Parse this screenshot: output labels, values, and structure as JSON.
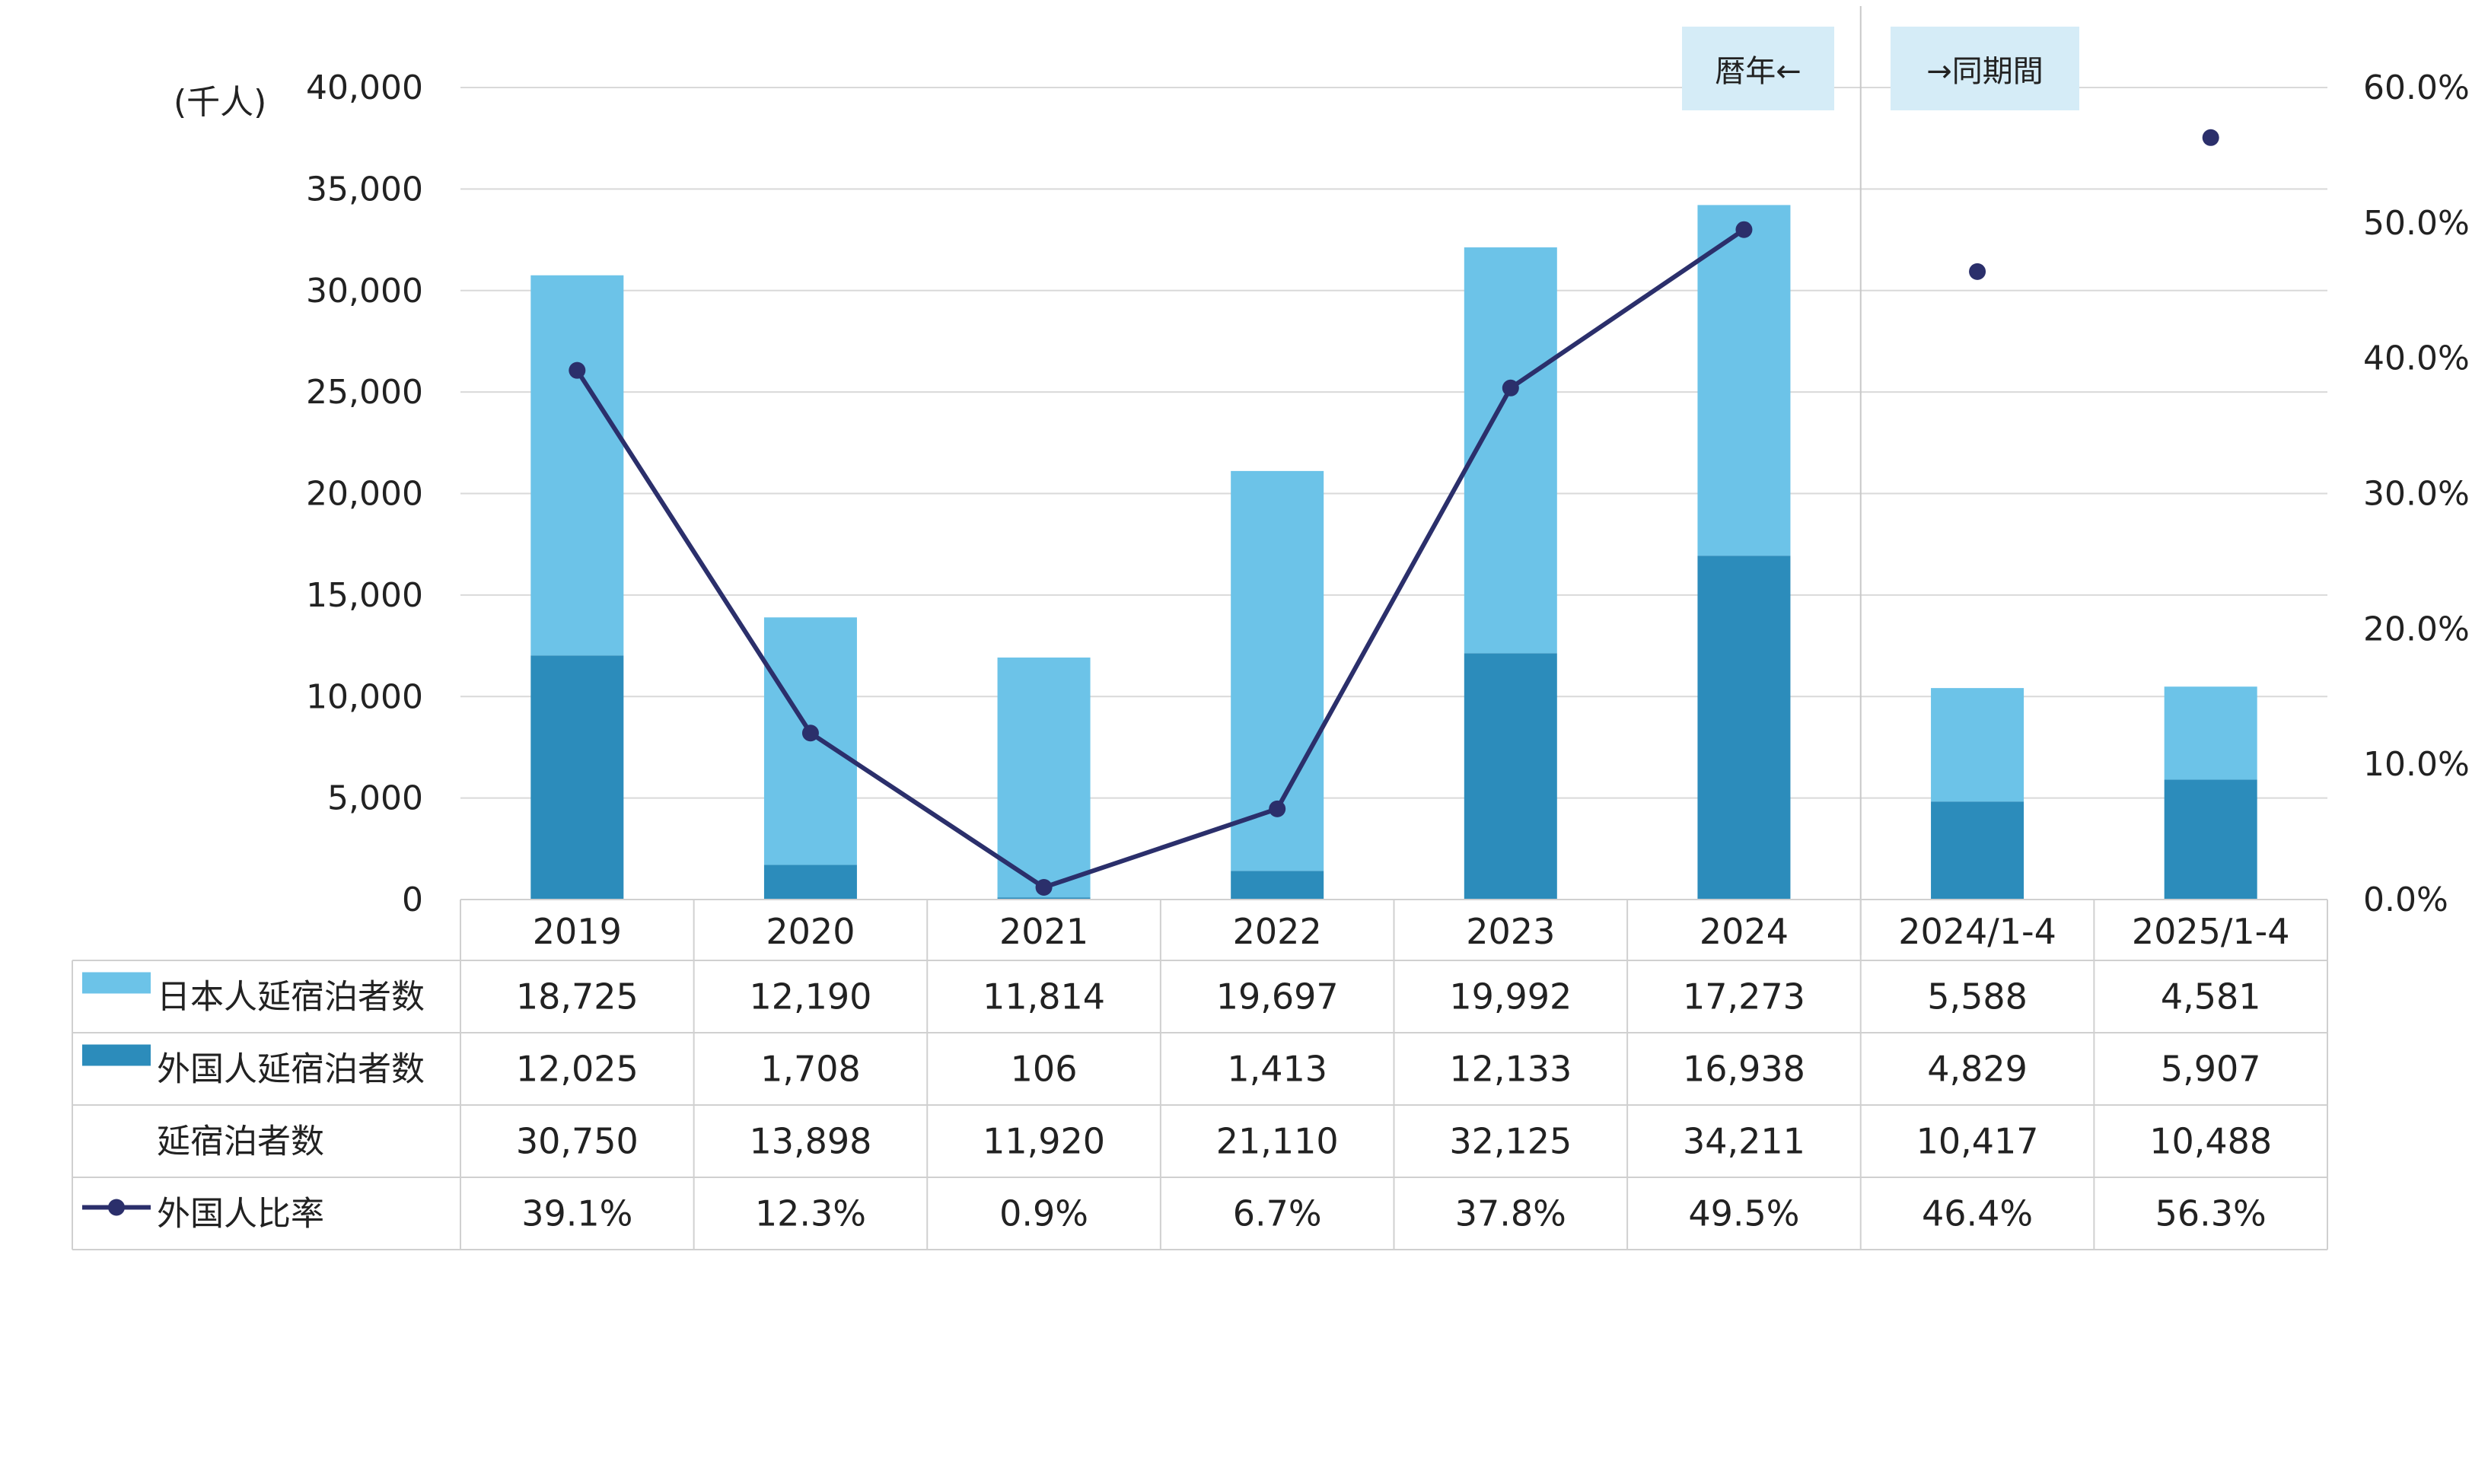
{
  "chart_data": {
    "type": "bar",
    "stacked": true,
    "unit_label": "(千人)",
    "categories": [
      "2019",
      "2020",
      "2021",
      "2022",
      "2023",
      "2024",
      "2024/1-4",
      "2025/1-4"
    ],
    "series": [
      {
        "name": "日本人延宿泊者数",
        "type": "bar",
        "axis": "left",
        "color": "#6CC3E8",
        "values": [
          18725,
          12190,
          11814,
          19697,
          19992,
          17273,
          5588,
          4581
        ],
        "labels": [
          "18,725",
          "12,190",
          "11,814",
          "19,697",
          "19,992",
          "17,273",
          "5,588",
          "4,581"
        ]
      },
      {
        "name": "外国人延宿泊者数",
        "type": "bar",
        "axis": "left",
        "color": "#2C8CBB",
        "values": [
          12025,
          1708,
          106,
          1413,
          12133,
          16938,
          4829,
          5907
        ],
        "labels": [
          "12,025",
          "1,708",
          "106",
          "1,413",
          "12,133",
          "16,938",
          "4,829",
          "5,907"
        ]
      },
      {
        "name": "外国人比率",
        "type": "line",
        "axis": "right",
        "color": "#2B2F6B",
        "values": [
          39.1,
          12.3,
          0.9,
          6.7,
          37.8,
          49.5,
          46.4,
          56.3
        ],
        "labels": [
          "39.1%",
          "12.3%",
          "0.9%",
          "6.7%",
          "37.8%",
          "49.5%",
          "46.4%",
          "56.3%"
        ],
        "connected_through_index": 5
      }
    ],
    "totals": {
      "name": "延宿泊者数",
      "values": [
        30750,
        13898,
        11920,
        21110,
        32125,
        34211,
        10417,
        10488
      ],
      "labels": [
        "30,750",
        "13,898",
        "11,920",
        "21,110",
        "32,125",
        "34,211",
        "10,417",
        "10,488"
      ]
    },
    "y_left": {
      "min": 0,
      "max": 40000,
      "step": 5000,
      "tick_labels": [
        "0",
        "5,000",
        "10,000",
        "15,000",
        "20,000",
        "25,000",
        "30,000",
        "35,000",
        "40,000"
      ]
    },
    "y_right": {
      "min": 0,
      "max": 60,
      "step": 10,
      "tick_labels": [
        "0.0%",
        "10.0%",
        "20.0%",
        "30.0%",
        "40.0%",
        "50.0%",
        "60.0%"
      ]
    },
    "grid": true,
    "annotations": [
      {
        "text": "暦年←",
        "anchor": "left-of-divider"
      },
      {
        "text": "→同期間",
        "anchor": "right-of-divider"
      }
    ],
    "divider_after_index": 5,
    "data_table": true
  }
}
